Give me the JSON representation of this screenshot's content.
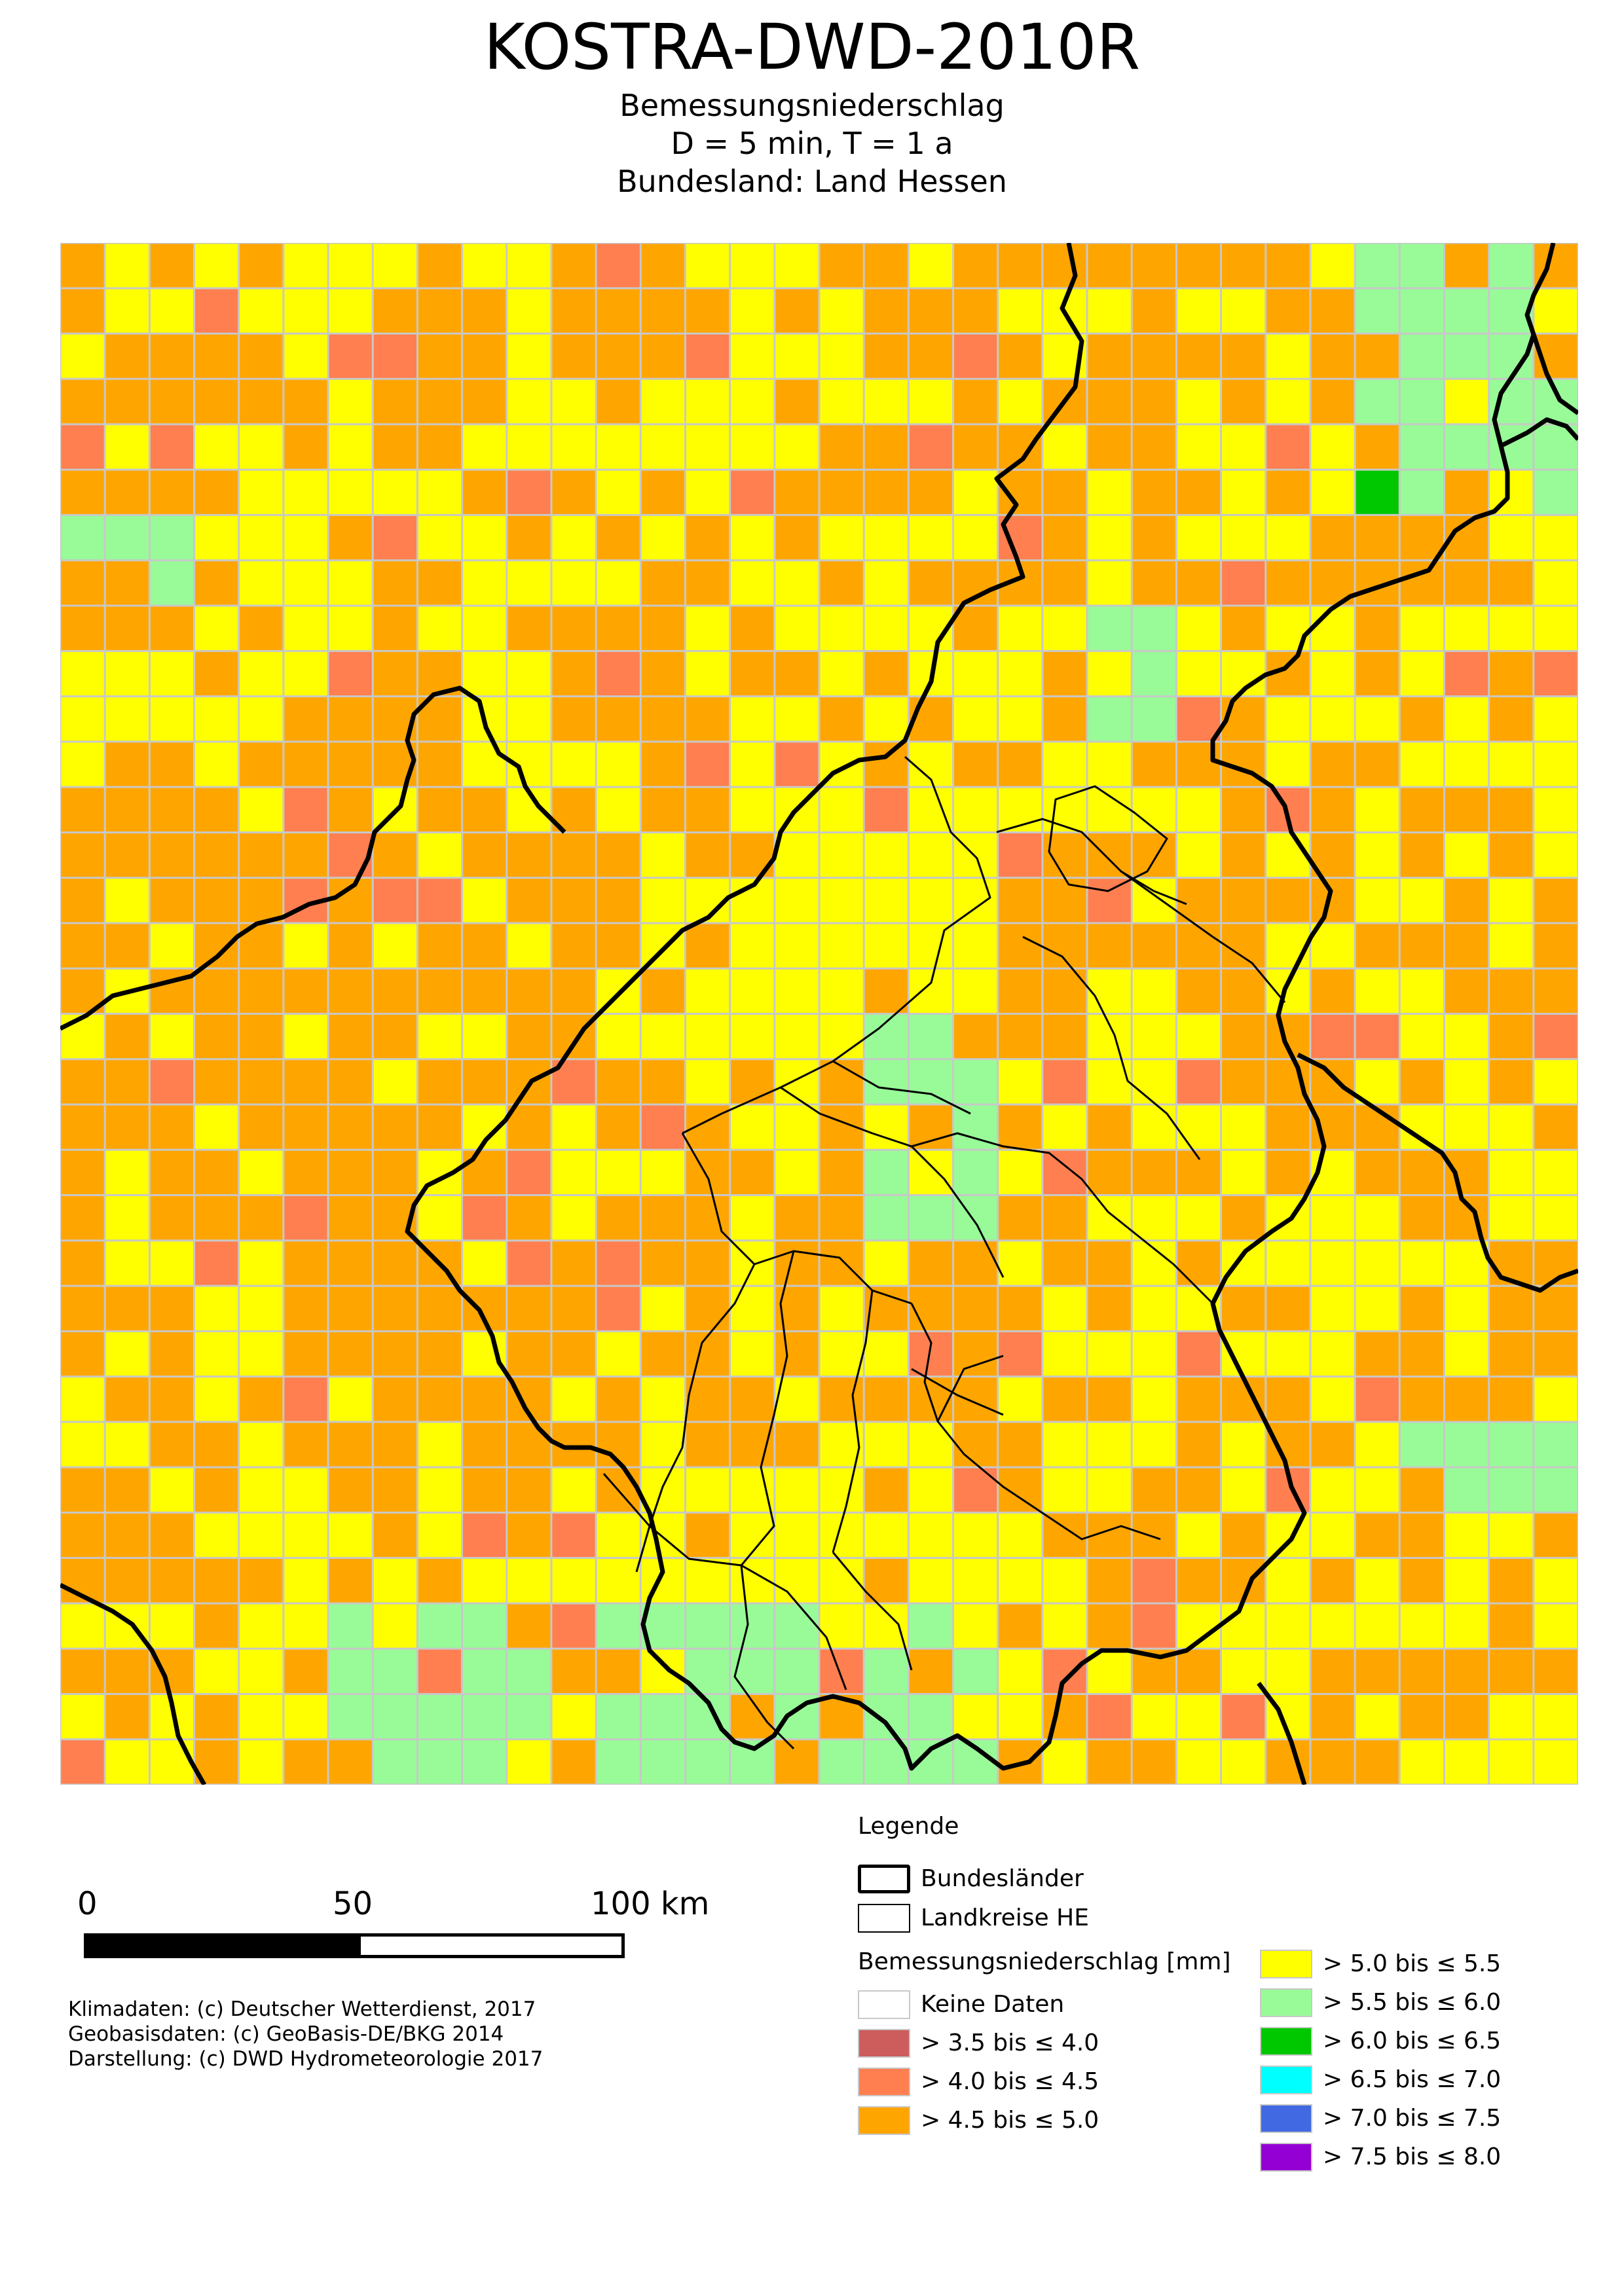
{
  "title": "KOSTRA-DWD-2010R",
  "subtitle_lines": [
    "Bemessungsniederschlag",
    "D = 5 min,  T = 1 a",
    "Bundesland: Land Hessen"
  ],
  "map": {
    "grid_columns": 34,
    "grid_rows": 34,
    "cell_colors_by_class": [
      "#cd5c5c",
      "#ff7f50",
      "#ffa500",
      "#ffff00",
      "#98fb98",
      "#00c800"
    ]
  },
  "scalebar": {
    "labels": [
      "0",
      "50",
      "100 km"
    ]
  },
  "credits": [
    "Klimadaten: (c) Deutscher Wetterdienst, 2017",
    "Geobasisdaten: (c) GeoBasis-DE/BKG 2014",
    "Darstellung: (c) DWD Hydrometeorologie 2017"
  ],
  "legend": {
    "title": "Legende",
    "lines": [
      {
        "label": "Bundesländer",
        "style": "thick"
      },
      {
        "label": "Landkreise HE",
        "style": "thin"
      }
    ],
    "classes_title": "Bemessungsniederschlag [mm]",
    "classes_left": [
      {
        "label": "Keine Daten",
        "color": "#ffffff"
      },
      {
        "label": "> 3.5 bis ≤ 4.0",
        "color": "#cd5c5c"
      },
      {
        "label": "> 4.0 bis ≤ 4.5",
        "color": "#ff7f50"
      },
      {
        "label": "> 4.5 bis ≤ 5.0",
        "color": "#ffa500"
      }
    ],
    "classes_right": [
      {
        "label": "> 5.0 bis ≤ 5.5",
        "color": "#ffff00"
      },
      {
        "label": "> 5.5 bis ≤ 6.0",
        "color": "#98fb98"
      },
      {
        "label": "> 6.0 bis ≤ 6.5",
        "color": "#00c800"
      },
      {
        "label": "> 6.5 bis ≤ 7.0",
        "color": "#00ffff"
      },
      {
        "label": "> 7.0 bis ≤ 7.5",
        "color": "#4169e1"
      },
      {
        "label": "> 7.5 bis ≤ 8.0",
        "color": "#9400d3"
      }
    ]
  }
}
